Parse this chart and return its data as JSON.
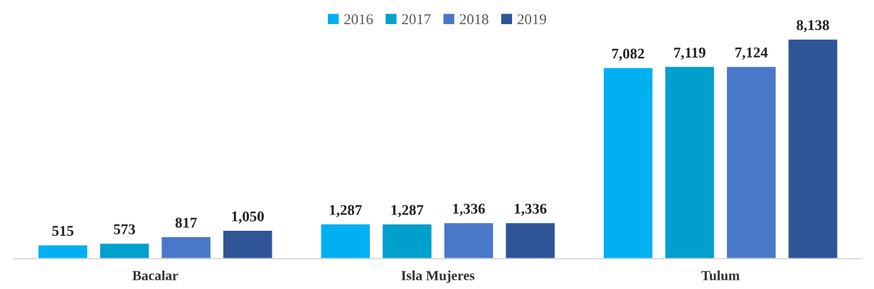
{
  "chart_data": {
    "type": "bar",
    "categories": [
      "Bacalar",
      "Isla Mujeres",
      "Tulum"
    ],
    "series": [
      {
        "name": "2016",
        "color": "#00b0f0",
        "values": [
          515,
          1287,
          7082
        ],
        "value_labels": [
          "515",
          "1,287",
          "7,082"
        ]
      },
      {
        "name": "2017",
        "color": "#009fcc",
        "values": [
          573,
          1287,
          7119
        ],
        "value_labels": [
          "573",
          "1,287",
          "7,119"
        ]
      },
      {
        "name": "2018",
        "color": "#4a78c8",
        "values": [
          817,
          1336,
          7124
        ],
        "value_labels": [
          "817",
          "1,336",
          "7,124"
        ]
      },
      {
        "name": "2019",
        "color": "#2e5596",
        "values": [
          1050,
          1336,
          8138
        ],
        "value_labels": [
          "1,050",
          "1,336",
          "8,138"
        ]
      }
    ],
    "legend": "top",
    "grid": false
  }
}
